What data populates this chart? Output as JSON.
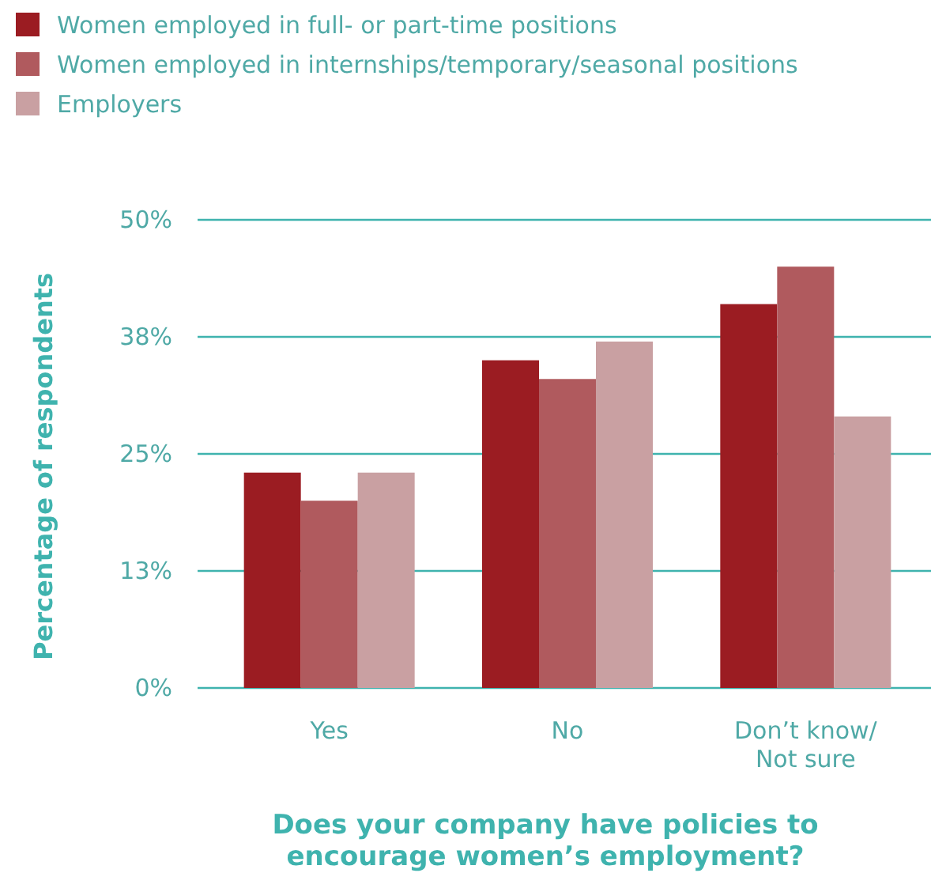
{
  "chart_data": {
    "type": "bar",
    "xlabel": "Does your company have policies to\nencourage women’s employment?",
    "ylabel": "Percentage of respondents",
    "categories": [
      "Yes",
      "No",
      "Don’t know/\nNot sure"
    ],
    "series": [
      {
        "name": "Women employed in full- or part-time positions",
        "color": "#9b1c22",
        "values": [
          23,
          35,
          41
        ]
      },
      {
        "name": "Women employed in internships/temporary/seasonal positions",
        "color": "#b05a5e",
        "values": [
          20,
          33,
          45
        ]
      },
      {
        "name": "Employers",
        "color": "#c9a0a2",
        "values": [
          23,
          37,
          29
        ]
      }
    ],
    "ylim": [
      0,
      50
    ],
    "yticks": [
      {
        "value": 0,
        "label": "0%"
      },
      {
        "value": 12.5,
        "label": "13%"
      },
      {
        "value": 25,
        "label": "25%"
      },
      {
        "value": 37.5,
        "label": "38%"
      },
      {
        "value": 50,
        "label": "50%"
      }
    ],
    "grid": "y",
    "legend": "top left"
  }
}
